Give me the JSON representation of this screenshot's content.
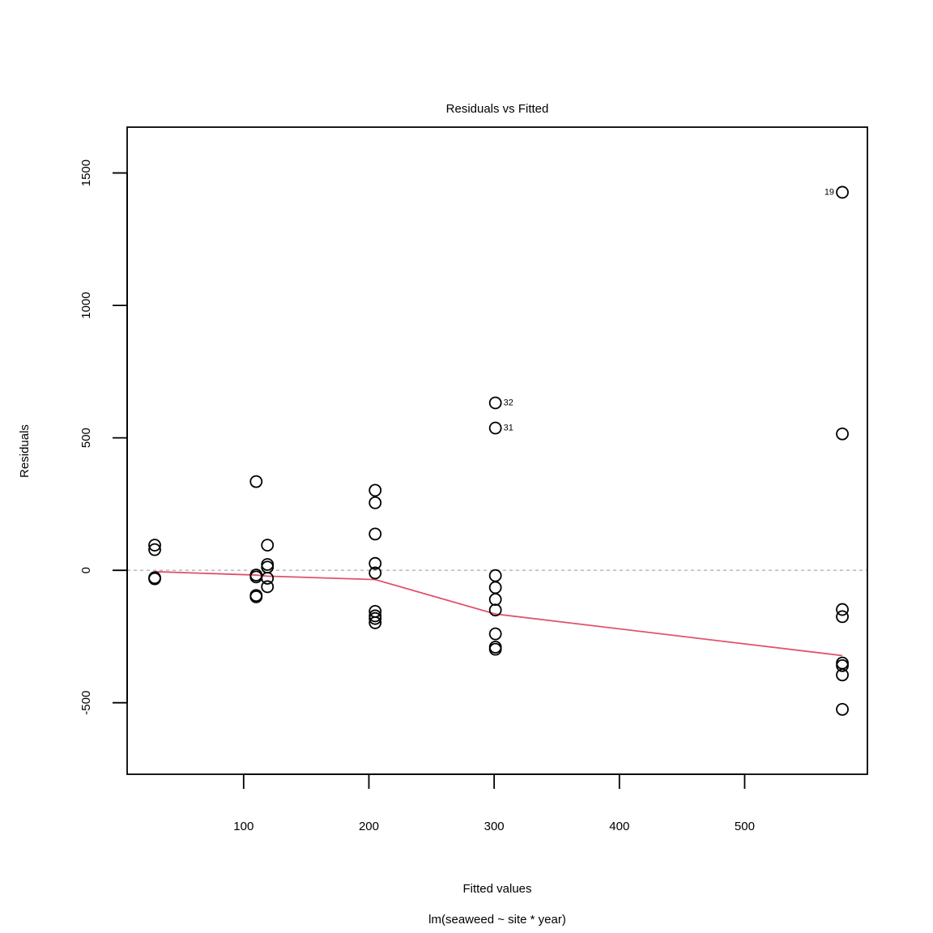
{
  "chart_data": {
    "type": "scatter",
    "title": "Residuals vs Fitted",
    "xlabel": "Fitted values",
    "ylabel": "Residuals",
    "subtitle": "lm(seaweed ~ site * year)",
    "xlim": [
      7,
      598
    ],
    "ylim": [
      -770,
      1673
    ],
    "x_ticks": [
      100,
      200,
      300,
      400,
      500
    ],
    "y_ticks": [
      -500,
      0,
      500,
      1000,
      1500
    ],
    "zero_line": 0,
    "colors": {
      "points": "#000000",
      "smooth": "#DF536B",
      "zero_line": "#BEBEBE"
    },
    "points": [
      {
        "x": 29,
        "y": 95
      },
      {
        "x": 29,
        "y": 78
      },
      {
        "x": 29,
        "y": -28
      },
      {
        "x": 29,
        "y": -32
      },
      {
        "x": 110,
        "y": 335
      },
      {
        "x": 110,
        "y": -18
      },
      {
        "x": 110,
        "y": -25
      },
      {
        "x": 110,
        "y": -95
      },
      {
        "x": 110,
        "y": -100
      },
      {
        "x": 119,
        "y": 95
      },
      {
        "x": 119,
        "y": 22
      },
      {
        "x": 119,
        "y": 12
      },
      {
        "x": 119,
        "y": -30
      },
      {
        "x": 119,
        "y": -62
      },
      {
        "x": 205,
        "y": 302
      },
      {
        "x": 205,
        "y": 255
      },
      {
        "x": 205,
        "y": 137
      },
      {
        "x": 205,
        "y": 26
      },
      {
        "x": 205,
        "y": -10
      },
      {
        "x": 205,
        "y": -155
      },
      {
        "x": 205,
        "y": -172
      },
      {
        "x": 205,
        "y": -182
      },
      {
        "x": 205,
        "y": -198
      },
      {
        "x": 301,
        "y": 632,
        "label": "32"
      },
      {
        "x": 301,
        "y": 537,
        "label": "31"
      },
      {
        "x": 301,
        "y": -20
      },
      {
        "x": 301,
        "y": -65
      },
      {
        "x": 301,
        "y": -110
      },
      {
        "x": 301,
        "y": -150
      },
      {
        "x": 301,
        "y": -240
      },
      {
        "x": 301,
        "y": -290
      },
      {
        "x": 301,
        "y": -298
      },
      {
        "x": 578,
        "y": 1427,
        "label": "19"
      },
      {
        "x": 578,
        "y": 515
      },
      {
        "x": 578,
        "y": -148
      },
      {
        "x": 578,
        "y": -175
      },
      {
        "x": 578,
        "y": -350
      },
      {
        "x": 578,
        "y": -360
      },
      {
        "x": 578,
        "y": -395
      },
      {
        "x": 578,
        "y": -525
      }
    ],
    "smooth": {
      "x": [
        29,
        110,
        119,
        205,
        301,
        578
      ],
      "y": [
        -5,
        -18,
        -22,
        -35,
        -165,
        -322
      ]
    }
  }
}
